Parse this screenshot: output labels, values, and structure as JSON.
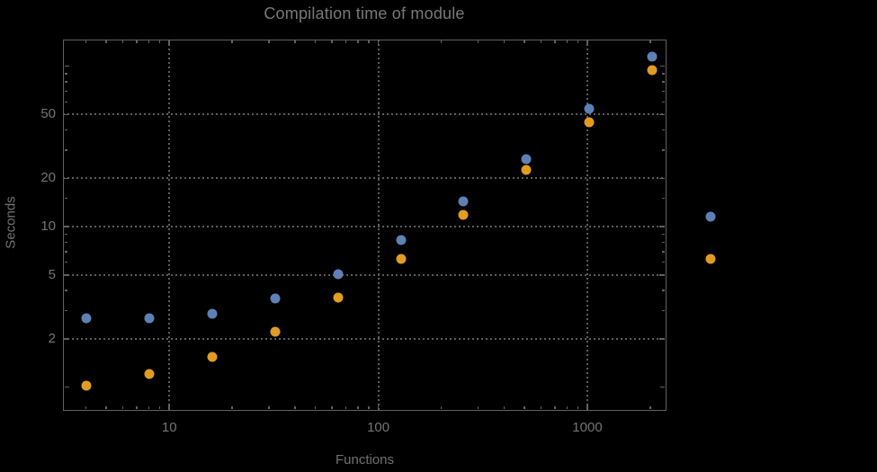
{
  "chart_data": {
    "type": "scatter",
    "title": "Compilation time of module",
    "xlabel": "Functions",
    "ylabel": "Seconds",
    "xscale": "log",
    "yscale": "log",
    "xlim": [
      3.1,
      2380
    ],
    "ylim": [
      0.716,
      147.6
    ],
    "x": [
      4,
      8,
      16,
      32,
      64,
      128,
      256,
      512,
      1024,
      2048
    ],
    "series": [
      {
        "name": "series-1-blue",
        "color": "#5E81B5",
        "values": [
          2.7,
          2.7,
          2.85,
          3.55,
          5.05,
          8.3,
          14.4,
          26.5,
          54,
          115
        ]
      },
      {
        "name": "series-2-orange",
        "color": "#E19C24",
        "values": [
          1.02,
          1.2,
          1.55,
          2.2,
          3.6,
          6.3,
          11.8,
          22.5,
          45,
          95
        ]
      }
    ],
    "x_ticks_major": [
      {
        "value": 10,
        "label": "10"
      },
      {
        "value": 100,
        "label": "100"
      },
      {
        "value": 1000,
        "label": "1000"
      }
    ],
    "x_ticks_minor": [
      4,
      5,
      6,
      7,
      8,
      9,
      20,
      30,
      40,
      50,
      60,
      70,
      80,
      90,
      200,
      300,
      400,
      500,
      600,
      700,
      800,
      900,
      2000
    ],
    "y_ticks_major": [
      {
        "value": 2,
        "label": "2"
      },
      {
        "value": 5,
        "label": "5"
      },
      {
        "value": 10,
        "label": "10"
      },
      {
        "value": 20,
        "label": "20"
      },
      {
        "value": 50,
        "label": "50"
      }
    ],
    "y_ticks_unlabeled": [
      1,
      100
    ],
    "y_ticks_minor": [
      3,
      4,
      6,
      7,
      8,
      9,
      15,
      30,
      40,
      60,
      70,
      80,
      90
    ],
    "grid": {
      "style": "dotted",
      "x_values": [
        10,
        100,
        1000
      ],
      "y_values": [
        2,
        5,
        10,
        20,
        50
      ]
    },
    "legend_markers": [
      {
        "color": "#5E81B5"
      },
      {
        "color": "#E19C24"
      }
    ]
  },
  "colors": {
    "background": "#000000",
    "frame": "#616161",
    "grid": "#5d5d5d",
    "title": "#787878",
    "axis_label": "#717171",
    "tick_label": "#757575",
    "series1": "#5E81B5",
    "series2": "#E19C24"
  }
}
